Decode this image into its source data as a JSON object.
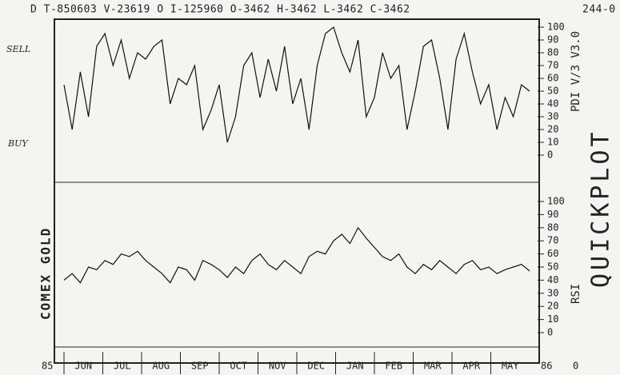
{
  "header": "D T-850603 V-23619  O I-125960  O-3462  H-3462  L-3462  C-3462",
  "header_right": "244-0",
  "left_labels": [
    "SELL",
    "BUY"
  ],
  "side_label": "COMEX GOLD",
  "right_title": "QUICKPLOT",
  "x_axis": {
    "start": "85",
    "end": "86",
    "after": "0",
    "categories": [
      "JUN",
      "JUL",
      "AUG",
      "SEP",
      "OCT",
      "NOV",
      "DEC",
      "JAN",
      "FEB",
      "MAR",
      "APR",
      "MAY"
    ]
  },
  "chart_data": [
    {
      "type": "line",
      "label": "PDI V/3 V3.0",
      "ylim": [
        0,
        100
      ],
      "yticks": [
        0,
        10,
        20,
        30,
        40,
        50,
        60,
        70,
        80,
        90,
        100
      ],
      "values": [
        55,
        20,
        65,
        30,
        85,
        95,
        70,
        90,
        60,
        80,
        75,
        85,
        90,
        40,
        60,
        55,
        70,
        20,
        35,
        55,
        10,
        30,
        70,
        80,
        45,
        75,
        50,
        85,
        40,
        60,
        20,
        70,
        95,
        100,
        80,
        65,
        90,
        30,
        45,
        80,
        60,
        70,
        20,
        50,
        85,
        90,
        60,
        20,
        75,
        95,
        65,
        40,
        55,
        20,
        45,
        30,
        55,
        50
      ]
    },
    {
      "type": "line",
      "label": "RSI",
      "ylim": [
        0,
        100
      ],
      "yticks": [
        0,
        10,
        20,
        30,
        40,
        50,
        60,
        70,
        80,
        90,
        100
      ],
      "values": [
        40,
        45,
        38,
        50,
        48,
        55,
        52,
        60,
        58,
        62,
        55,
        50,
        45,
        38,
        50,
        48,
        40,
        55,
        52,
        48,
        42,
        50,
        45,
        55,
        60,
        52,
        48,
        55,
        50,
        45,
        58,
        62,
        60,
        70,
        75,
        68,
        80,
        72,
        65,
        58,
        55,
        60,
        50,
        45,
        52,
        48,
        55,
        50,
        45,
        52,
        55,
        48,
        50,
        45,
        48,
        50,
        52,
        47
      ]
    }
  ]
}
